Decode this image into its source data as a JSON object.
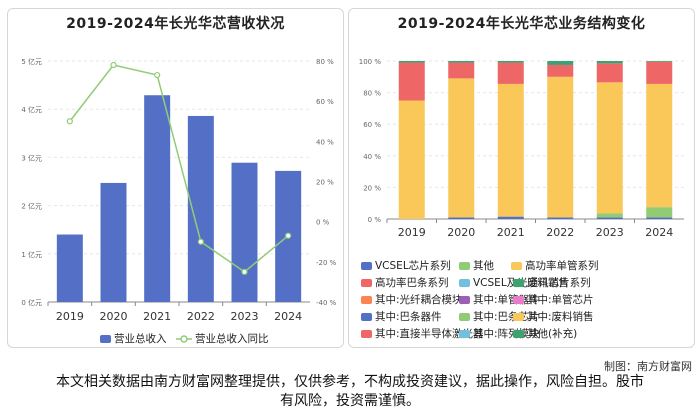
{
  "left": {
    "title": "2019-2024年长光华芯营收状况",
    "legend": {
      "revenue": "营业总收入",
      "growth": "营业总收入同比"
    },
    "colors": {
      "bar": "#5470c6",
      "line": "#91cc75"
    }
  },
  "right": {
    "title": "2019-2024年长光华芯业务结构变化",
    "legend": [
      {
        "name": "VCSEL芯片系列",
        "color": "#5470c6"
      },
      {
        "name": "其他",
        "color": "#91cc75"
      },
      {
        "name": "高功率单管系列",
        "color": "#fac858"
      },
      {
        "name": "高功率巴条系列",
        "color": "#ee6666"
      },
      {
        "name": "VCSEL及光通讯芯片系列",
        "color": "#73c0de"
      },
      {
        "name": "废料销售",
        "color": "#3ba272"
      },
      {
        "name": "其中:光纤耦合模块",
        "color": "#fc8452"
      },
      {
        "name": "其中:单管器件",
        "color": "#9a60b4"
      },
      {
        "name": "其中:单管芯片",
        "color": "#ea7ccc"
      },
      {
        "name": "其中:巴条器件",
        "color": "#5470c6"
      },
      {
        "name": "其中:巴条芯片",
        "color": "#91cc75"
      },
      {
        "name": "其中:废料销售",
        "color": "#fac858"
      },
      {
        "name": "其中:直接半导体激光器",
        "color": "#ee6666"
      },
      {
        "name": "其中:阵列模块",
        "color": "#73c0de"
      },
      {
        "name": "其他(补充)",
        "color": "#3ba272"
      }
    ]
  },
  "chart_data": [
    {
      "type": "bar",
      "title": "2019-2024年长光华芯营收状况",
      "categories": [
        "2019",
        "2020",
        "2021",
        "2022",
        "2023",
        "2024"
      ],
      "y_ticks": [
        "0 亿元",
        "1 亿元",
        "2 亿元",
        "3 亿元",
        "4 亿元",
        "5 亿元"
      ],
      "y2_ticks": [
        "-40 %",
        "-20 %",
        "0 %",
        "20 %",
        "40 %",
        "60 %",
        "80 %"
      ],
      "ylim": [
        0,
        5
      ],
      "y2lim": [
        -40,
        80
      ],
      "series": [
        {
          "name": "营业总收入",
          "type": "bar",
          "axis": "left",
          "values": [
            1.4,
            2.47,
            4.29,
            3.86,
            2.89,
            2.72
          ]
        },
        {
          "name": "营业总收入同比",
          "type": "line",
          "axis": "right",
          "values": [
            50,
            78,
            73,
            -10,
            -25,
            -7
          ]
        }
      ],
      "grid": true,
      "legend_position": "bottom"
    },
    {
      "type": "bar",
      "stacked": true,
      "title": "2019-2024年长光华芯业务结构变化",
      "categories": [
        "2019",
        "2020",
        "2021",
        "2022",
        "2023",
        "2024"
      ],
      "y_ticks": [
        "0 %",
        "20 %",
        "40 %",
        "60 %",
        "80 %",
        "100 %"
      ],
      "ylim": [
        0,
        100
      ],
      "series": [
        {
          "name": "VCSEL芯片系列",
          "values": [
            0,
            1,
            1.5,
            1,
            1,
            1
          ]
        },
        {
          "name": "其他",
          "values": [
            0,
            0,
            0,
            0,
            2.5,
            6.5
          ]
        },
        {
          "name": "高功率单管系列",
          "values": [
            75,
            88,
            84,
            89,
            83,
            78
          ]
        },
        {
          "name": "高功率巴条系列",
          "values": [
            24,
            10,
            13.5,
            7.5,
            12,
            14
          ]
        },
        {
          "name": "VCSEL及光通讯芯片系列",
          "values": [
            0,
            0,
            0,
            0,
            0,
            0
          ]
        },
        {
          "name": "废料销售",
          "values": [
            1,
            1,
            1,
            2.5,
            1.5,
            0.5
          ]
        }
      ],
      "grid": true,
      "legend_position": "bottom"
    }
  ],
  "credit": "制图：南方财富网",
  "footer": "本文相关数据由南方财富网整理提供，仅供参考，不构成投资建议，据此操作，风险自担。股市有风险，投资需谨慎。"
}
